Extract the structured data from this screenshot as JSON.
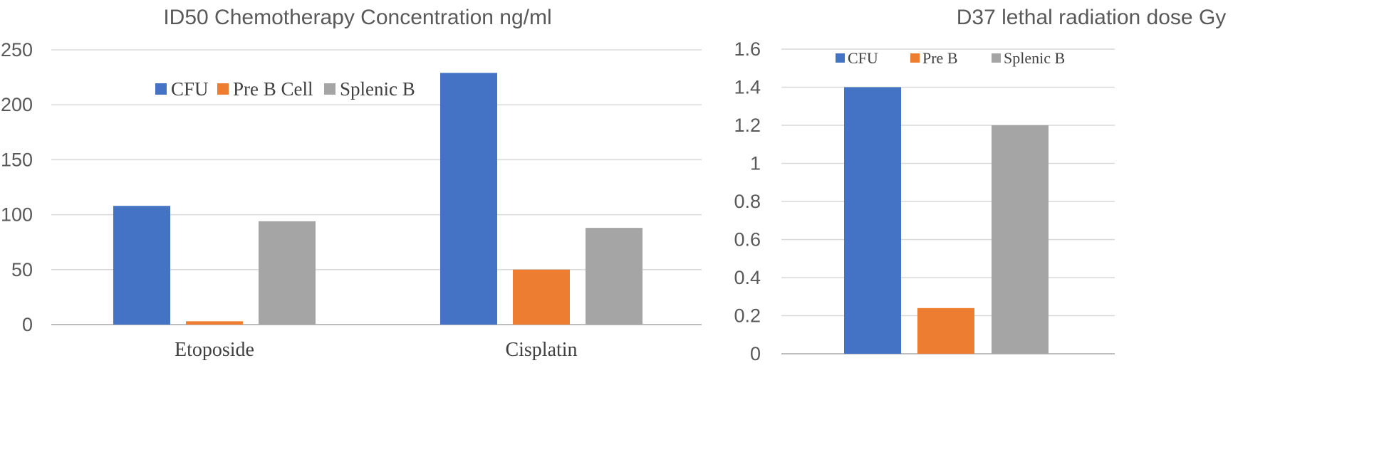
{
  "chart_data": [
    {
      "type": "bar",
      "title": "ID50 Chemotherapy Concentration ng/ml",
      "categories": [
        "Etoposide",
        "Cisplatin"
      ],
      "series": [
        {
          "name": "CFU",
          "values": [
            108,
            229
          ],
          "color": "#4472c4"
        },
        {
          "name": "Pre B Cell",
          "values": [
            3,
            50
          ],
          "color": "#ed7d31"
        },
        {
          "name": "Splenic B",
          "values": [
            94,
            88
          ],
          "color": "#a5a5a5"
        }
      ],
      "ylim": [
        0,
        250
      ],
      "yticks": [
        "0",
        "50",
        "100",
        "150",
        "200",
        "250"
      ],
      "grid": true,
      "legend": "top-left"
    },
    {
      "type": "bar",
      "title": "D37 lethal radiation dose Gy",
      "categories": [
        ""
      ],
      "series": [
        {
          "name": "CFU",
          "values": [
            1.4
          ],
          "color": "#4472c4"
        },
        {
          "name": "Pre B",
          "values": [
            0.24
          ],
          "color": "#ed7d31"
        },
        {
          "name": "Splenic B",
          "values": [
            1.2
          ],
          "color": "#a5a5a5"
        }
      ],
      "ylim": [
        0,
        1.6
      ],
      "yticks": [
        "0",
        "0.2",
        "0.4",
        "0.6",
        "0.8",
        "1",
        "1.2",
        "1.4",
        "1.6"
      ],
      "grid": true,
      "legend": "top"
    }
  ]
}
